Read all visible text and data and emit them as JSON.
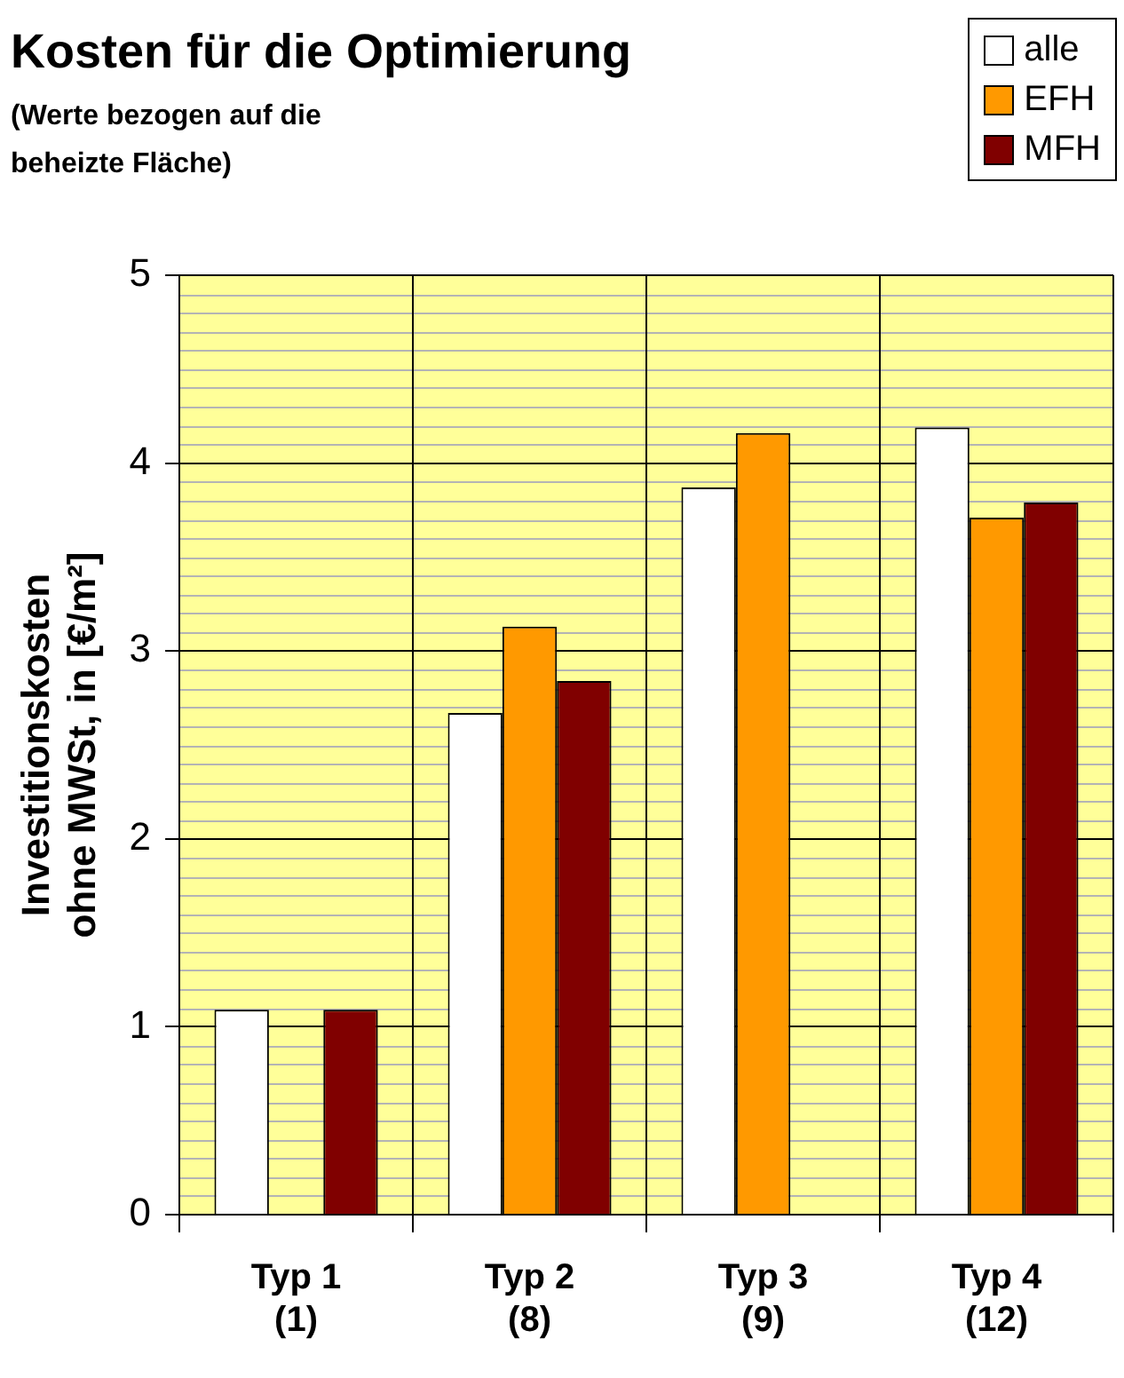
{
  "chart_data": {
    "type": "bar",
    "title": "Kosten für die Optimierung",
    "subtitle": "(Werte bezogen auf die\nbeheizte Fläche)",
    "ylabel": "Investitionskosten\nohne MWSt, in [€/m²]",
    "categories": [
      "Typ 1\n(1)",
      "Typ 2\n(8)",
      "Typ 3\n(9)",
      "Typ 4\n(12)"
    ],
    "series": [
      {
        "name": "alle",
        "color": "#ffffff",
        "values": [
          1.09,
          2.67,
          3.87,
          4.19
        ]
      },
      {
        "name": "EFH",
        "color": "#ff9900",
        "values": [
          null,
          3.13,
          4.16,
          3.71
        ]
      },
      {
        "name": "MFH",
        "color": "#800000",
        "values": [
          1.09,
          2.84,
          null,
          3.79
        ]
      }
    ],
    "ylim": [
      0,
      5
    ],
    "yticks": [
      0,
      1,
      2,
      3,
      4,
      5
    ],
    "grid": true,
    "legend": "top right"
  }
}
